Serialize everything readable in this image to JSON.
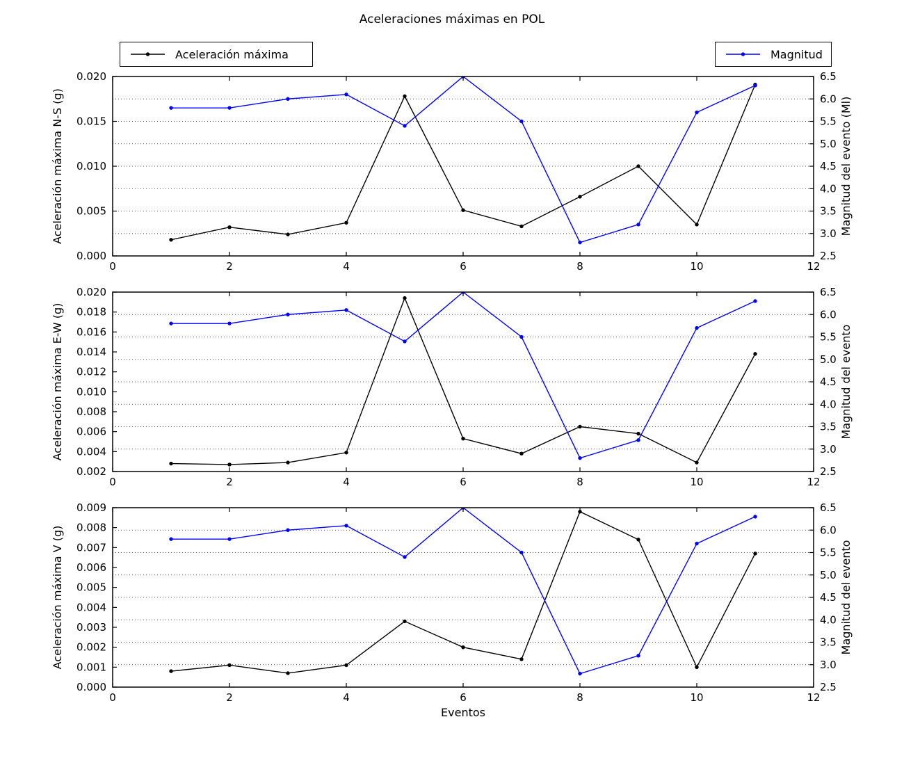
{
  "figure": {
    "background": "#ffffff"
  },
  "legends": {
    "accel": {
      "label": "Aceleración máxima",
      "color": "#000000"
    },
    "magnitude": {
      "label": "Magnitud",
      "color": "#0000ff"
    }
  },
  "chart_data": {
    "type": "line",
    "title": "Aceleraciones máximas en POL",
    "xlabel": "Eventos",
    "x": [
      1,
      2,
      3,
      4,
      5,
      6,
      7,
      8,
      9,
      10,
      11
    ],
    "xlim": [
      0,
      12
    ],
    "x_ticks": [
      0,
      2,
      4,
      6,
      8,
      10,
      12
    ],
    "x_tick_labels": [
      "0",
      "2",
      "4",
      "6",
      "8",
      "10",
      "12"
    ],
    "grid": "horizontal dotted lines at right-axis ticks",
    "grid_values_right_axis": [
      3.0,
      3.5,
      4.0,
      4.5,
      5.0,
      5.5,
      6.0
    ],
    "legend_position": "outside top-left (accel) and top-right (magnitude)",
    "colors": {
      "accel": "#000000",
      "magnitude": "#0000ff",
      "grid": "#4a4a4a",
      "frame": "#000000"
    },
    "right_axis": {
      "lim": [
        2.5,
        6.5
      ],
      "ticks": [
        2.5,
        3.0,
        3.5,
        4.0,
        4.5,
        5.0,
        5.5,
        6.0,
        6.5
      ],
      "tick_labels": [
        "2.5",
        "3.0",
        "3.5",
        "4.0",
        "4.5",
        "5.0",
        "5.5",
        "6.0",
        "6.5"
      ]
    },
    "series_magnitude": {
      "name": "Magnitud",
      "axis": "right",
      "values": [
        5.8,
        5.8,
        6.0,
        6.1,
        5.4,
        6.5,
        5.5,
        2.8,
        3.2,
        5.7,
        6.3
      ]
    },
    "subplots": [
      {
        "id": "ns",
        "ylabel": "Aceleración máxima N-S (g)",
        "right_label": "Magnitud del evento (Ml)",
        "ylim": [
          0.0,
          0.02
        ],
        "y_ticks": [
          0.0,
          0.005,
          0.01,
          0.015,
          0.02
        ],
        "y_tick_labels": [
          "0.000",
          "0.005",
          "0.010",
          "0.015",
          "0.020"
        ],
        "accel_values": [
          0.0018,
          0.0032,
          0.0024,
          0.0037,
          0.0178,
          0.0051,
          0.0033,
          0.0066,
          0.01,
          0.0035,
          0.0191
        ]
      },
      {
        "id": "ew",
        "ylabel": "Aceleración máxima E-W (g)",
        "right_label": "Magnitud del evento",
        "ylim": [
          0.002,
          0.02
        ],
        "y_ticks": [
          0.002,
          0.004,
          0.006,
          0.008,
          0.01,
          0.012,
          0.014,
          0.016,
          0.018,
          0.02
        ],
        "y_tick_labels": [
          "0.002",
          "0.004",
          "0.006",
          "0.008",
          "0.010",
          "0.012",
          "0.014",
          "0.016",
          "0.018",
          "0.020"
        ],
        "accel_values": [
          0.0028,
          0.0027,
          0.0029,
          0.0039,
          0.0194,
          0.0053,
          0.0038,
          0.0065,
          0.0058,
          0.0029,
          0.0138
        ]
      },
      {
        "id": "v",
        "ylabel": "Aceleración máxima V (g)",
        "right_label": "Magnitud del evento",
        "ylim": [
          0.0,
          0.009
        ],
        "y_ticks": [
          0.0,
          0.001,
          0.002,
          0.003,
          0.004,
          0.005,
          0.006,
          0.007,
          0.008,
          0.009
        ],
        "y_tick_labels": [
          "0.000",
          "0.001",
          "0.002",
          "0.003",
          "0.004",
          "0.005",
          "0.006",
          "0.007",
          "0.008",
          "0.009"
        ],
        "accel_values": [
          0.0008,
          0.0011,
          0.0007,
          0.0011,
          0.0033,
          0.002,
          0.0014,
          0.0088,
          0.0074,
          0.001,
          0.0067
        ]
      }
    ]
  }
}
